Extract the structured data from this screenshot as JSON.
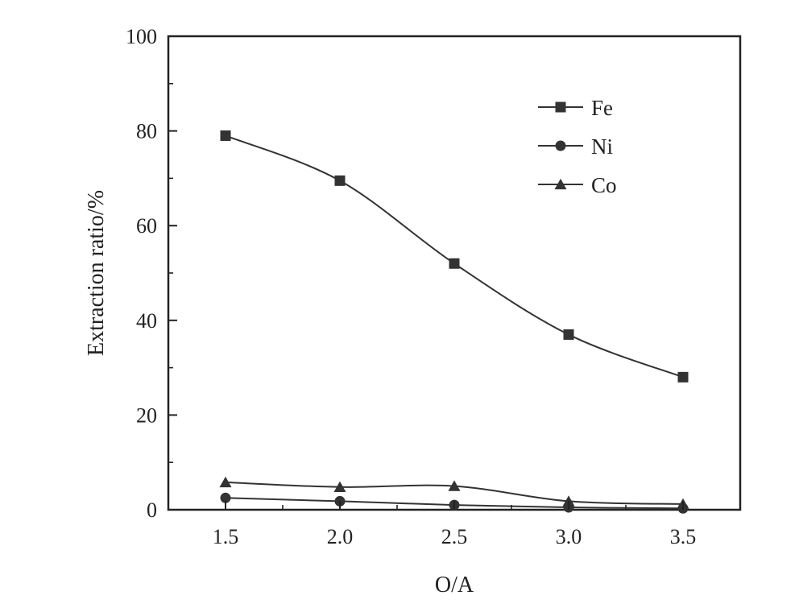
{
  "chart_data": {
    "type": "line",
    "title": "",
    "xlabel": "O/A",
    "ylabel": "Extraction ratio/%",
    "x": [
      1.5,
      2.0,
      2.5,
      3.0,
      3.5
    ],
    "x_tick_labels": [
      "1.5",
      "2.0",
      "2.5",
      "3.0",
      "3.5"
    ],
    "y_tick_labels": [
      "0",
      "20",
      "40",
      "60",
      "80",
      "100"
    ],
    "xlim": [
      1.25,
      3.75
    ],
    "ylim": [
      0,
      100
    ],
    "grid": false,
    "legend_position": "top-right",
    "series": [
      {
        "name": "Fe",
        "marker": "square",
        "values": [
          79,
          69.5,
          52,
          37,
          28
        ]
      },
      {
        "name": "Ni",
        "marker": "circle",
        "values": [
          2.5,
          1.8,
          1.0,
          0.5,
          0.3
        ]
      },
      {
        "name": "Co",
        "marker": "triangle",
        "values": [
          5.8,
          4.8,
          5.0,
          1.8,
          1.2
        ]
      }
    ],
    "colors": {
      "line": "#333333",
      "marker": "#333333",
      "axis": "#222222"
    }
  }
}
